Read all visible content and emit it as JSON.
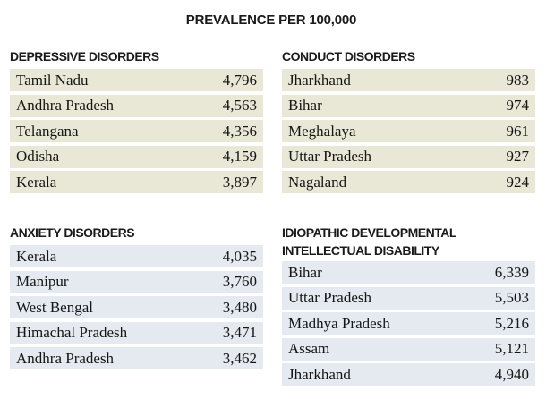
{
  "header": {
    "title": "PREVALENCE PER 100,000"
  },
  "sections": {
    "depressive": {
      "title": "DEPRESSIVE DISORDERS",
      "rows": [
        {
          "state": "Tamil Nadu",
          "value": "4,796"
        },
        {
          "state": "Andhra Pradesh",
          "value": "4,563"
        },
        {
          "state": "Telangana",
          "value": "4,356"
        },
        {
          "state": "Odisha",
          "value": "4,159"
        },
        {
          "state": "Kerala",
          "value": "3,897"
        }
      ]
    },
    "conduct": {
      "title": "CONDUCT DISORDERS",
      "rows": [
        {
          "state": "Jharkhand",
          "value": "983"
        },
        {
          "state": "Bihar",
          "value": "974"
        },
        {
          "state": "Meghalaya",
          "value": "961"
        },
        {
          "state": "Uttar Pradesh",
          "value": "927"
        },
        {
          "state": "Nagaland",
          "value": "924"
        }
      ]
    },
    "anxiety": {
      "title": "ANXIETY DISORDERS",
      "rows": [
        {
          "state": "Kerala",
          "value": "4,035"
        },
        {
          "state": "Manipur",
          "value": "3,760"
        },
        {
          "state": "West Bengal",
          "value": "3,480"
        },
        {
          "state": "Himachal Pradesh",
          "value": "3,471"
        },
        {
          "state": "Andhra Pradesh",
          "value": "3,462"
        }
      ]
    },
    "idiopathic": {
      "title_line1": "IDIOPATHIC DEVELOPMENTAL",
      "title_line2": "INTELLECTUAL DISABILITY",
      "rows": [
        {
          "state": "Bihar",
          "value": "6,339"
        },
        {
          "state": "Uttar Pradesh",
          "value": "5,503"
        },
        {
          "state": "Madhya Pradesh",
          "value": "5,216"
        },
        {
          "state": "Assam",
          "value": "5,121"
        },
        {
          "state": "Jharkhand",
          "value": "4,940"
        }
      ]
    }
  }
}
